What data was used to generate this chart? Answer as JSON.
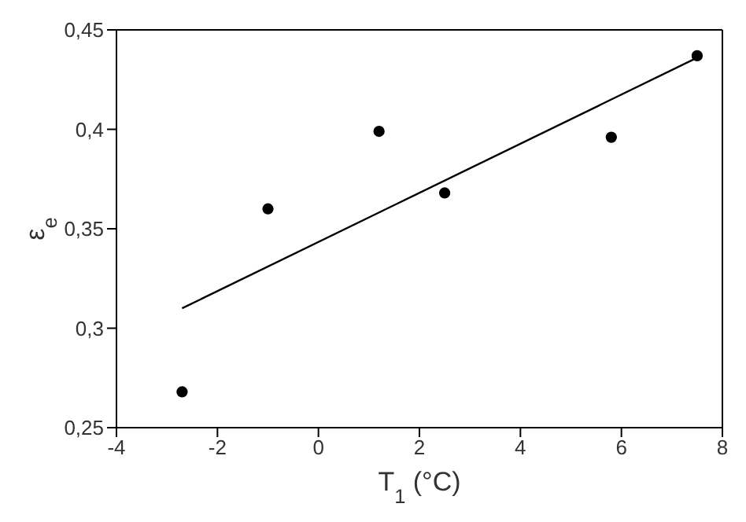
{
  "chart_data": {
    "type": "scatter",
    "xlabel": "T$_{1}$ (°C)",
    "ylabel": "ε$_{e}$",
    "xlim": [
      -4,
      8
    ],
    "xticks": [
      -4,
      -2,
      0,
      2,
      4,
      6,
      8
    ],
    "ylim": [
      0.25,
      0.45
    ],
    "yticks": [
      {
        "value": 0.25,
        "label": "0,25"
      },
      {
        "value": 0.3,
        "label": "0,3"
      },
      {
        "value": 0.35,
        "label": "0,35"
      },
      {
        "value": 0.4,
        "label": "0,4"
      },
      {
        "value": 0.45,
        "label": "0,45"
      }
    ],
    "grid": false,
    "legend": false,
    "marker": "circle",
    "series": [
      {
        "color": "#000000",
        "x": [
          -2.7,
          -1,
          1.2,
          2.5,
          5.8,
          7.5
        ],
        "values": [
          0.268,
          0.36,
          0.399,
          0.368,
          0.396,
          0.437
        ]
      },
      {
        "type": "line",
        "color": "#000000",
        "marker": "none",
        "line_style": "solid",
        "x": [
          -2.7,
          7.5
        ],
        "values": [
          0.31,
          0.436
        ]
      }
    ]
  }
}
